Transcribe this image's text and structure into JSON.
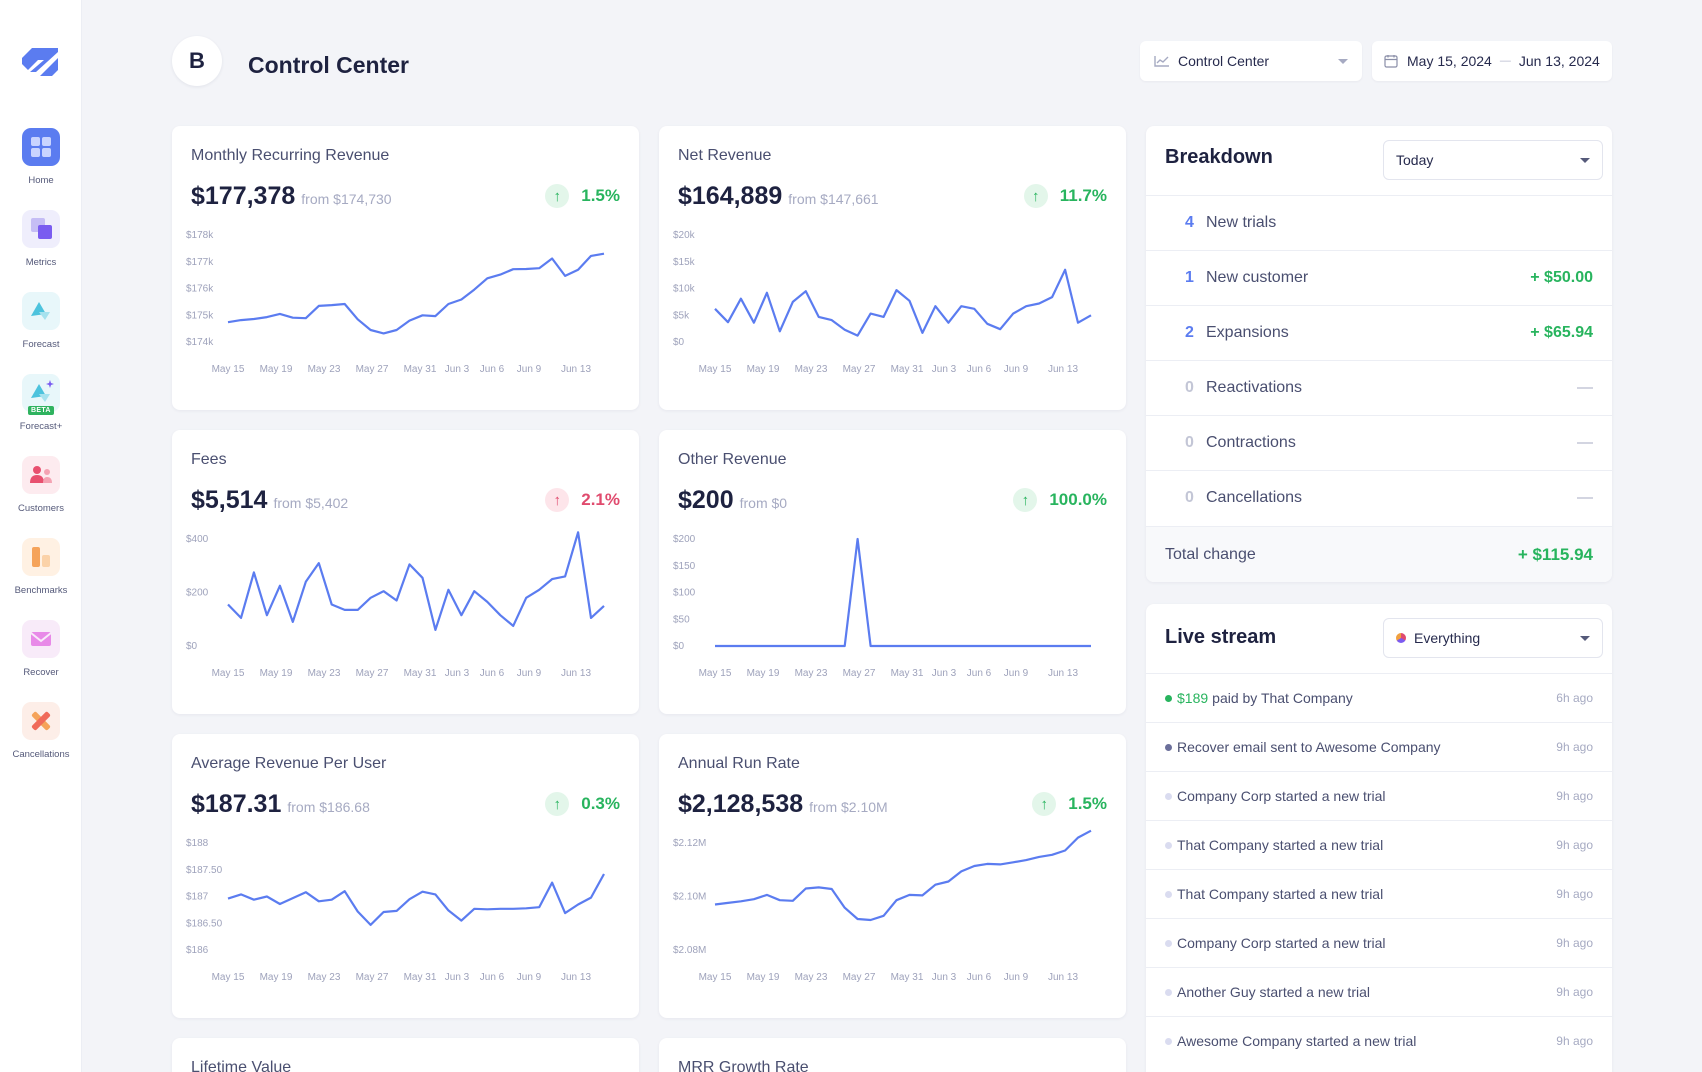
{
  "sidebar": {
    "items": [
      {
        "label": "Home",
        "icon": "home-icon"
      },
      {
        "label": "Metrics",
        "icon": "metrics-icon"
      },
      {
        "label": "Forecast",
        "icon": "forecast-icon"
      },
      {
        "label": "Forecast+",
        "icon": "forecast-plus-icon",
        "badge": "BETA"
      },
      {
        "label": "Customers",
        "icon": "customers-icon"
      },
      {
        "label": "Benchmarks",
        "icon": "benchmarks-icon"
      },
      {
        "label": "Recover",
        "icon": "recover-icon"
      },
      {
        "label": "Cancellations",
        "icon": "cancellations-icon"
      }
    ]
  },
  "header": {
    "brand_initial": "B",
    "title": "Control Center",
    "dashboard_select": "Control Center",
    "date_start": "May 15, 2024",
    "date_end": "Jun 13, 2024"
  },
  "colors": {
    "accent": "#5b7cf0",
    "positive": "#28b45e",
    "negative": "#e04b6e"
  },
  "cards": [
    {
      "title": "Monthly Recurring Revenue",
      "value": "$177,378",
      "from": "from $174,730",
      "change": "1.5%",
      "direction": "up"
    },
    {
      "title": "Net Revenue",
      "value": "$164,889",
      "from": "from $147,661",
      "change": "11.7%",
      "direction": "up"
    },
    {
      "title": "Fees",
      "value": "$5,514",
      "from": "from $5,402",
      "change": "2.1%",
      "direction": "up-negative"
    },
    {
      "title": "Other Revenue",
      "value": "$200",
      "from": "from $0",
      "change": "100.0%",
      "direction": "up"
    },
    {
      "title": "Average Revenue Per User",
      "value": "$187.31",
      "from": "from $186.68",
      "change": "0.3%",
      "direction": "up"
    },
    {
      "title": "Annual Run Rate",
      "value": "$2,128,538",
      "from": "from $2.10M",
      "change": "1.5%",
      "direction": "up"
    },
    {
      "title": "Lifetime Value"
    },
    {
      "title": "MRR Growth Rate"
    }
  ],
  "chart_data": [
    {
      "type": "line",
      "name": "Monthly Recurring Revenue",
      "x_tick_labels": [
        "May 15",
        "May 19",
        "May 23",
        "May 27",
        "May 31",
        "Jun 3",
        "Jun 6",
        "Jun 9",
        "Jun 13"
      ],
      "y_tick_labels": [
        "$178k",
        "$177k",
        "$176k",
        "$175k",
        "$174k"
      ],
      "ylim": [
        174000,
        178000
      ],
      "values": [
        174740,
        174820,
        174860,
        174930,
        175050,
        174910,
        174890,
        175350,
        175380,
        175420,
        174850,
        174450,
        174320,
        174450,
        174800,
        175000,
        174970,
        175420,
        175590,
        175960,
        176380,
        176520,
        176720,
        176730,
        176760,
        177120,
        176470,
        176700,
        177220,
        177300
      ]
    },
    {
      "type": "line",
      "name": "Net Revenue",
      "x_tick_labels": [
        "May 15",
        "May 19",
        "May 23",
        "May 27",
        "May 31",
        "Jun 3",
        "Jun 6",
        "Jun 9",
        "Jun 13"
      ],
      "y_tick_labels": [
        "$20k",
        "$15k",
        "$10k",
        "$5k",
        "$0"
      ],
      "ylim": [
        0,
        20000
      ],
      "values": [
        6200,
        3700,
        8100,
        3600,
        9200,
        2000,
        7500,
        9500,
        4700,
        4100,
        2300,
        1200,
        5300,
        4700,
        9700,
        7700,
        1700,
        6700,
        3600,
        6700,
        6200,
        3400,
        2400,
        5300,
        6700,
        7200,
        8400,
        13500,
        3600,
        5000
      ]
    },
    {
      "type": "line",
      "name": "Fees",
      "x_tick_labels": [
        "May 15",
        "May 19",
        "May 23",
        "May 27",
        "May 31",
        "Jun 3",
        "Jun 6",
        "Jun 9",
        "Jun 13"
      ],
      "y_tick_labels": [
        "$400",
        "$200",
        "$0"
      ],
      "ylim": [
        0,
        400
      ],
      "values": [
        155,
        105,
        275,
        115,
        225,
        90,
        240,
        310,
        155,
        135,
        135,
        180,
        205,
        170,
        305,
        255,
        60,
        210,
        115,
        205,
        165,
        115,
        75,
        180,
        210,
        250,
        260,
        425,
        105,
        150
      ]
    },
    {
      "type": "line",
      "name": "Other Revenue",
      "x_tick_labels": [
        "May 15",
        "May 19",
        "May 23",
        "May 27",
        "May 31",
        "Jun 3",
        "Jun 6",
        "Jun 9",
        "Jun 13"
      ],
      "y_tick_labels": [
        "$200",
        "$150",
        "$100",
        "$50",
        "$0"
      ],
      "ylim": [
        0,
        200
      ],
      "values": [
        0,
        0,
        0,
        0,
        0,
        0,
        0,
        0,
        0,
        0,
        0,
        200,
        0,
        0,
        0,
        0,
        0,
        0,
        0,
        0,
        0,
        0,
        0,
        0,
        0,
        0,
        0,
        0,
        0,
        0
      ]
    },
    {
      "type": "line",
      "name": "Average Revenue Per User",
      "x_tick_labels": [
        "May 15",
        "May 19",
        "May 23",
        "May 27",
        "May 31",
        "Jun 3",
        "Jun 6",
        "Jun 9",
        "Jun 13"
      ],
      "y_tick_labels": [
        "$188",
        "$187.50",
        "$187",
        "$186.50",
        "$186"
      ],
      "ylim": [
        186,
        188
      ],
      "values": [
        186.96,
        187.04,
        186.94,
        187.0,
        186.86,
        186.97,
        187.08,
        186.91,
        186.94,
        187.1,
        186.72,
        186.47,
        186.71,
        186.73,
        186.95,
        187.09,
        187.04,
        186.74,
        186.55,
        186.77,
        186.76,
        186.77,
        186.77,
        186.78,
        186.8,
        187.26,
        186.69,
        186.85,
        186.98,
        187.42
      ]
    },
    {
      "type": "line",
      "name": "Annual Run Rate",
      "x_tick_labels": [
        "May 15",
        "May 19",
        "May 23",
        "May 27",
        "May 31",
        "Jun 3",
        "Jun 6",
        "Jun 9",
        "Jun 13"
      ],
      "y_tick_labels": [
        "$2.12M",
        "$2.10M",
        "$2.08M"
      ],
      "ylim": [
        2080000,
        2120000
      ],
      "values": [
        2097000,
        2097600,
        2098200,
        2099000,
        2100600,
        2098600,
        2098400,
        2103000,
        2103400,
        2102800,
        2095800,
        2091600,
        2091200,
        2092800,
        2098600,
        2100600,
        2100400,
        2104400,
        2105600,
        2109400,
        2111400,
        2112200,
        2112000,
        2112800,
        2113600,
        2114800,
        2115600,
        2117200,
        2122000,
        2124600
      ]
    }
  ],
  "breakdown": {
    "title": "Breakdown",
    "period": "Today",
    "rows": [
      {
        "count": "4",
        "label": "New trials",
        "amount": ""
      },
      {
        "count": "1",
        "label": "New customer",
        "amount": "+ $50.00"
      },
      {
        "count": "2",
        "label": "Expansions",
        "amount": "+ $65.94"
      },
      {
        "count": "0",
        "label": "Reactivations",
        "amount": "—"
      },
      {
        "count": "0",
        "label": "Contractions",
        "amount": "—"
      },
      {
        "count": "0",
        "label": "Cancellations",
        "amount": "—"
      }
    ],
    "total_label": "Total change",
    "total_amount": "+ $115.94"
  },
  "live_stream": {
    "title": "Live stream",
    "filter": "Everything",
    "events": [
      {
        "amount": "$189",
        "text": "paid by That Company",
        "time": "6h ago",
        "bullet": "#28b45e"
      },
      {
        "amount": "",
        "text": "Recover email sent to Awesome Company",
        "time": "9h ago",
        "bullet": "#6b6f9a"
      },
      {
        "amount": "",
        "text": "Company Corp started a new trial",
        "time": "9h ago",
        "bullet": "#dadcf0"
      },
      {
        "amount": "",
        "text": "That Company started a new trial",
        "time": "9h ago",
        "bullet": "#dadcf0"
      },
      {
        "amount": "",
        "text": "That Company started a new trial",
        "time": "9h ago",
        "bullet": "#dadcf0"
      },
      {
        "amount": "",
        "text": "Company Corp started a new trial",
        "time": "9h ago",
        "bullet": "#dadcf0"
      },
      {
        "amount": "",
        "text": "Another Guy started a new trial",
        "time": "9h ago",
        "bullet": "#dadcf0"
      },
      {
        "amount": "",
        "text": "Awesome Company started a new trial",
        "time": "9h ago",
        "bullet": "#dadcf0"
      }
    ]
  }
}
